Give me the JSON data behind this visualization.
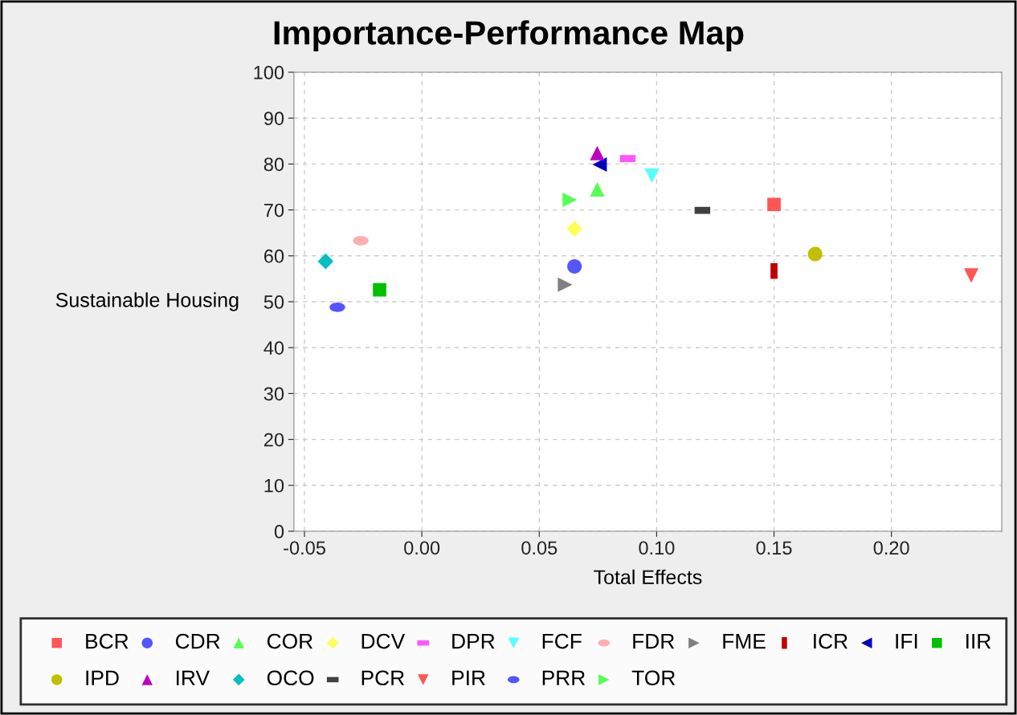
{
  "chart_data": {
    "type": "scatter",
    "title": "Importance-Performance Map",
    "xlabel": "Total Effects",
    "ylabel": "Sustainable Housing",
    "xlim": [
      -0.0545,
      0.247
    ],
    "ylim": [
      0,
      100
    ],
    "xticks": [
      {
        "value": -0.05,
        "label": "-0.05"
      },
      {
        "value": 0,
        "label": "0.00"
      },
      {
        "value": 0.05,
        "label": "0.05"
      },
      {
        "value": 0.1,
        "label": "0.10"
      },
      {
        "value": 0.15,
        "label": "0.15"
      },
      {
        "value": 0.2,
        "label": "0.20"
      }
    ],
    "yticks": [
      0,
      10,
      20,
      30,
      40,
      50,
      60,
      70,
      80,
      90,
      100
    ],
    "grid": true,
    "legend": "bottom",
    "series": [
      {
        "name": "BCR",
        "color": "#ff5555",
        "marker": "square",
        "x": [
          0.15
        ],
        "values": [
          71.2
        ]
      },
      {
        "name": "CDR",
        "color": "#5555ff",
        "marker": "circle",
        "x": [
          0.065
        ],
        "values": [
          57.7
        ]
      },
      {
        "name": "COR",
        "color": "#55ff55",
        "marker": "triangle",
        "x": [
          0.0747
        ],
        "values": [
          74.5
        ]
      },
      {
        "name": "DCV",
        "color": "#ffff55",
        "marker": "diamond",
        "x": [
          0.065
        ],
        "values": [
          65.9
        ]
      },
      {
        "name": "DPR",
        "color": "#ff55ff",
        "marker": "rect_h",
        "x": [
          0.0877
        ],
        "values": [
          81.2
        ]
      },
      {
        "name": "FCF",
        "color": "#55ffff",
        "marker": "triangle_down",
        "x": [
          0.098
        ],
        "values": [
          77.5
        ]
      },
      {
        "name": "FDR",
        "color": "#ffafaf",
        "x": [
          -0.026
        ],
        "values": [
          63.3
        ]
      },
      {
        "name": "FME",
        "color": "#808080",
        "marker": "triangle_right",
        "x": [
          0.061
        ],
        "values": [
          53.7
        ]
      },
      {
        "name": "ICR",
        "color": "#c00000",
        "marker": "rect_v",
        "x": [
          0.15
        ],
        "values": [
          56.7
        ]
      },
      {
        "name": "IFI",
        "color": "#0000c0",
        "marker": "triangle_left",
        "x": [
          0.0757
        ],
        "values": [
          79.9
        ]
      },
      {
        "name": "IIR",
        "color": "#00c000",
        "marker": "square",
        "x": [
          -0.018
        ],
        "values": [
          52.6
        ]
      },
      {
        "name": "IPD",
        "color": "#c0c000",
        "marker": "circle",
        "x": [
          0.1675
        ],
        "values": [
          60.4
        ]
      },
      {
        "name": "IRV",
        "color": "#c000c0",
        "marker": "triangle",
        "x": [
          0.0747
        ],
        "values": [
          82.4
        ]
      },
      {
        "name": "OCO",
        "color": "#00c0c0",
        "marker": "diamond",
        "x": [
          -0.041
        ],
        "values": [
          58.8
        ]
      },
      {
        "name": "PCR",
        "color": "#404040",
        "marker": "rect_h",
        "x": [
          0.1195
        ],
        "values": [
          69.9
        ]
      },
      {
        "name": "PIR",
        "color": "#ff5555",
        "marker": "triangle_down",
        "x": [
          0.234
        ],
        "values": [
          55.7
        ]
      },
      {
        "name": "PRR",
        "color": "#5555ff",
        "x": [
          -0.036
        ],
        "values": [
          48.8
        ]
      },
      {
        "name": "TOR",
        "color": "#55ff55",
        "marker": "triangle_right",
        "x": [
          0.063
        ],
        "values": [
          72.2
        ]
      }
    ]
  }
}
